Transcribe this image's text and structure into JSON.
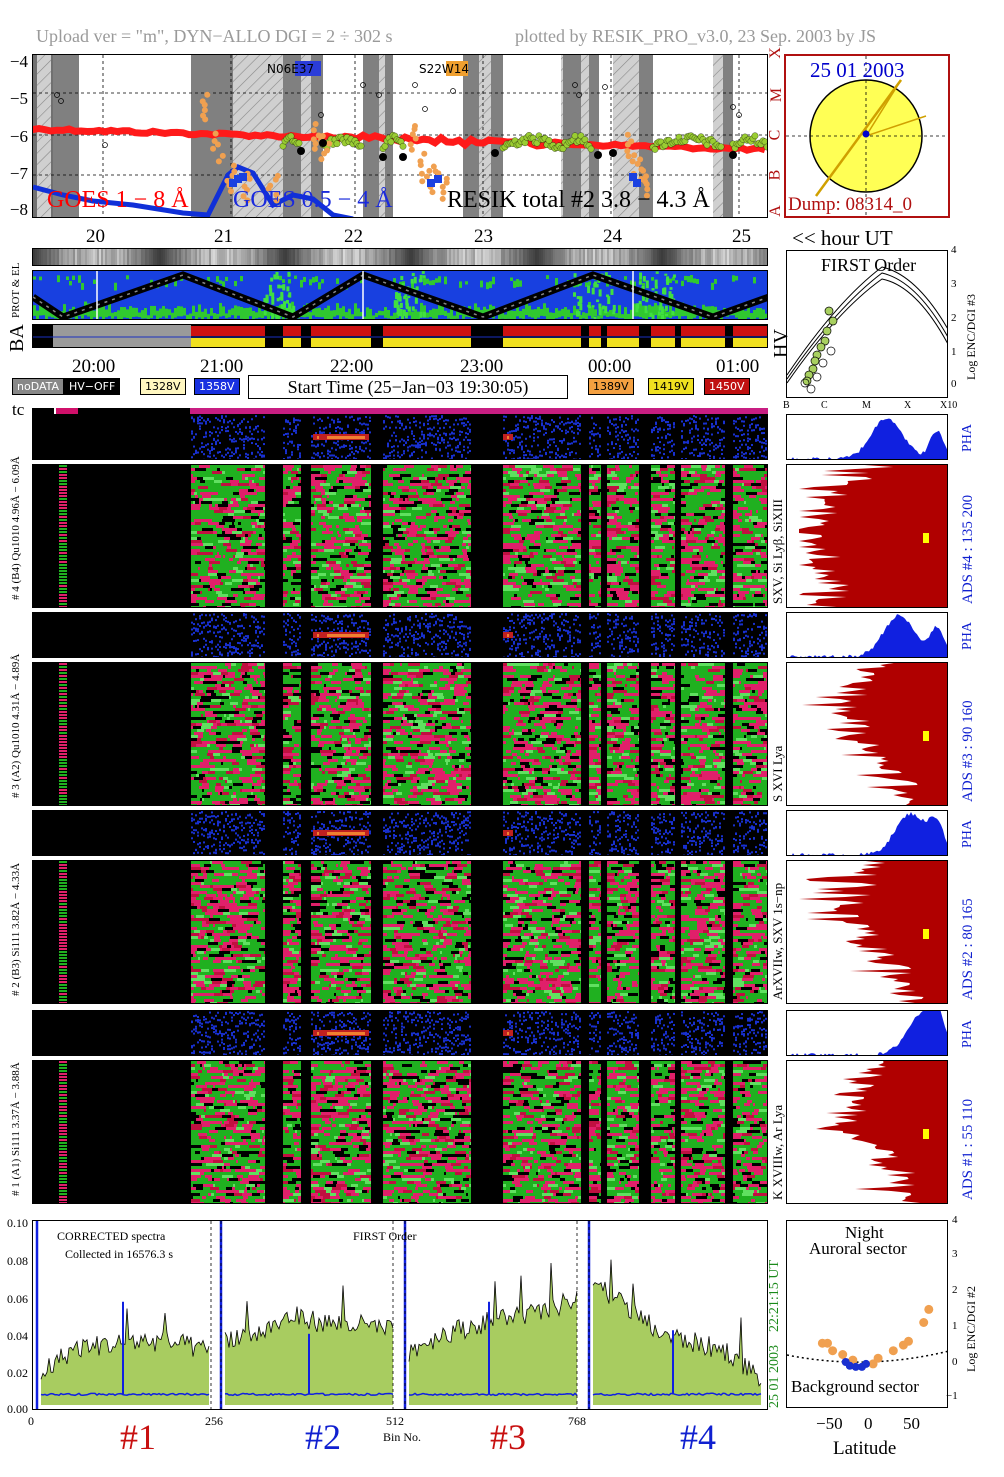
{
  "header": {
    "left": "Upload ver = \"m\", DYN−ALLO DGI =   2 ÷ 302 s",
    "right": "plotted by RESIK_PRO_v3.0, 23 Sep. 2003 by JS"
  },
  "goes": {
    "yticks": [
      "−4",
      "−5",
      "−6",
      "−7",
      "−8"
    ],
    "flare_classes": [
      "X",
      "M",
      "C",
      "B",
      "A"
    ],
    "label_goes1": "GOES 1 − 8 Å",
    "label_goes2": "GOES 0.5 − 4 Å",
    "label_resik": "RESIK total #2  3.8 − 4.3 Å",
    "box1": "N06E37",
    "box2": "S22W14",
    "colors": {
      "goes1": "#ff0000",
      "goes2": "#0000dd",
      "resik": "#000000"
    }
  },
  "sun": {
    "date": "25 01 2003",
    "dump": "Dump: 08314_0"
  },
  "time_axis": {
    "top_labels": [
      "20",
      "21",
      "22",
      "23",
      "24",
      "25"
    ],
    "hour_ut": "<< hour UT",
    "bottom_labels": [
      "20:00",
      "21:00",
      "22:00",
      "23:00",
      "00:00",
      "01:00"
    ]
  },
  "labels": {
    "prot_el": "PROT & EL",
    "ba": "BA",
    "hv": "HV",
    "tc": "tc"
  },
  "first_order": {
    "title": "FIRST Order",
    "ylabel": "Log ENC/DGI #3",
    "yticks": [
      "4",
      "3",
      "2",
      "1",
      "0"
    ],
    "xticks": [
      "B",
      "C",
      "M",
      "X",
      "X10"
    ]
  },
  "legend": {
    "nodata": "noDATA",
    "hvoff": "HV−OFF",
    "v1328": "1328V",
    "v1358": "1358V",
    "start_time": "Start Time (25−Jan−03 19:30:05)",
    "v1389": "1389V",
    "v1419": "1419V",
    "v1450": "1450V"
  },
  "channels": [
    {
      "pha_label": "# 4 (B4) Qu1010 4.96Å − 6.09Å",
      "spec_label": "SXV, Si Lyβ, SiXIII",
      "ads_label": "ADS #4 :  135 200",
      "pha": "PHA"
    },
    {
      "pha_label": "# 3 (A2) Qu1010 4.31Å − 4.89Å",
      "spec_label": "S XVI Lya",
      "ads_label": "ADS #3 :   90 160",
      "pha": "PHA"
    },
    {
      "pha_label": "# 2 (B3) Si111 3.82Å − 4.33Å",
      "spec_label": "ArXVIIw, SXV 1s−np",
      "ads_label": "ADS #2 :   80 165",
      "pha": "PHA"
    },
    {
      "pha_label": "# 1 (A1) Si111 3.37Å − 3.88Å",
      "spec_label": "K XVIIIw, Ar Lya",
      "ads_label": "ADS #1 :   55 110",
      "pha": "PHA"
    }
  ],
  "spectrum": {
    "yticks": [
      "0.10",
      "0.08",
      "0.06",
      "0.04",
      "0.02",
      "0.00"
    ],
    "corrected": "CORRECTED spectra",
    "collected": "Collected in 16576.3 s",
    "first_order": "FIRST Order",
    "xticks": [
      "0",
      "256",
      "512",
      "768"
    ],
    "xlabel": "Bin No.",
    "time_label": "22:21:15 UT",
    "date_label": "25 01 2003",
    "section_labels": [
      "#1",
      "#2",
      "#3",
      "#4"
    ]
  },
  "latitude_panel": {
    "night": "Night",
    "auroral": "Auroral sector",
    "background": "Background sector",
    "ylabel": "Log ENC/DGI #2",
    "yticks": [
      "4",
      "3",
      "2",
      "1",
      "0",
      "−1"
    ],
    "xticks": [
      "−50",
      "0",
      "50"
    ],
    "xlabel": "Latitude"
  },
  "chart_data": [
    {
      "type": "line",
      "title": "",
      "ylim": [
        -8,
        -4
      ],
      "series": [
        {
          "name": "GOES 1 − 8 Å",
          "x": [
            "19:30",
            "20:00",
            "20:30",
            "21:00",
            "21:30",
            "22:00",
            "22:30",
            "23:00",
            "23:30",
            "00:00",
            "00:30",
            "01:00",
            "01:30"
          ],
          "values": [
            -5.9,
            -6.0,
            -6.1,
            -6.25,
            -6.3,
            -6.35,
            -6.4,
            -6.4,
            -6.45,
            -6.45,
            -6.5,
            -6.5,
            -6.5
          ]
        },
        {
          "name": "GOES 0.5 − 4 Å",
          "x": [
            "19:30",
            "20:00",
            "20:30",
            "21:00",
            "21:30",
            "22:00"
          ],
          "values": [
            -7.8,
            -8.0,
            -8.1,
            -7.4,
            -7.6,
            -7.7
          ]
        }
      ]
    },
    {
      "type": "scatter",
      "title": "Latitude",
      "xlabel": "Latitude",
      "ylabel": "Log ENC/DGI #2",
      "xlim": [
        -80,
        80
      ],
      "ylim": [
        -1,
        4
      ],
      "series": [
        {
          "name": "",
          "x": [
            -45,
            -35,
            -40,
            -25,
            -15,
            5,
            10,
            25,
            35,
            40,
            55,
            60
          ],
          "y": [
            0.75,
            0.55,
            0.75,
            0.45,
            0.3,
            0.2,
            0.35,
            0.55,
            0.7,
            0.8,
            1.3,
            1.65
          ]
        }
      ]
    }
  ]
}
